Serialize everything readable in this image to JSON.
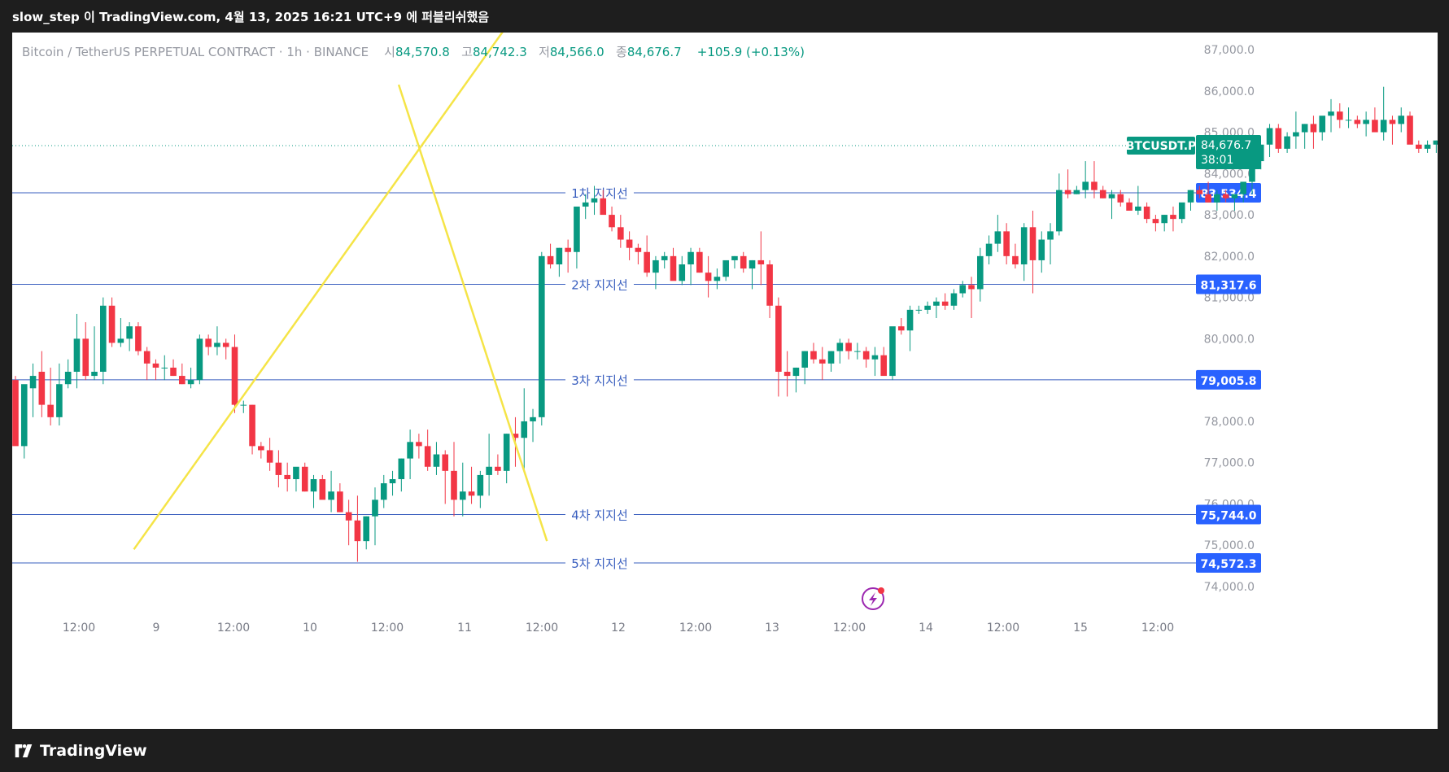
{
  "header": {
    "publisher": "slow_step 이 TradingView.com, 4월 13, 2025 16:21 UTC+9 에 퍼블리쉬했음"
  },
  "legend": {
    "symbol": "Bitcoin / TetherUS PERPETUAL CONTRACT · 1h · BINANCE",
    "open_label": "시",
    "open": "84,570.8",
    "high_label": "고",
    "high": "84,742.3",
    "low_label": "저",
    "low": "84,566.0",
    "close_label": "종",
    "close": "84,676.7",
    "change": "+105.9 (+0.13%)"
  },
  "footer": {
    "brand": "TradingView"
  },
  "colors": {
    "up": "#089981",
    "down": "#f23645",
    "line": "#3a5fbf",
    "trend": "#f5e447",
    "badge": "#2962ff"
  },
  "chart_data": {
    "type": "candlestick",
    "symbol": "BTCUSDT.P",
    "ylim": [
      73000,
      87500
    ],
    "y_ticks": [
      "74,000.0",
      "75,000.0",
      "76,000.0",
      "77,000.0",
      "78,000.0",
      "79,000.0",
      "80,000.0",
      "81,000.0",
      "82,000.0",
      "83,000.0",
      "84,000.0",
      "85,000.0",
      "86,000.0",
      "87,000.0"
    ],
    "x_ticks": [
      "12:00",
      "9",
      "12:00",
      "10",
      "12:00",
      "11",
      "12:00",
      "12",
      "12:00",
      "13",
      "12:00",
      "14",
      "12:00",
      "15",
      "12:00"
    ],
    "last_price": {
      "value": 84676.7,
      "label": "84,676.7",
      "countdown": "38:01",
      "tag": "BTCUSDT.P"
    },
    "support_lines": [
      {
        "label": "1차 지지선",
        "value": 83534.4,
        "value_label": "83,534.4"
      },
      {
        "label": "2차 지지선",
        "value": 81317.6,
        "value_label": "81,317.6"
      },
      {
        "label": "3차 지지선",
        "value": 79005.8,
        "value_label": "79,005.8"
      },
      {
        "label": "4차 지지선",
        "value": 75744.0,
        "value_label": "75,744.0"
      },
      {
        "label": "5차 지지선",
        "value": 74572.3,
        "value_label": "74,572.3"
      }
    ],
    "trendlines": [
      {
        "from": [
          13.5,
          74900
        ],
        "to": [
          57.8,
          88100
        ]
      },
      {
        "from": [
          43.7,
          86150
        ],
        "to": [
          60.6,
          75100
        ]
      }
    ],
    "candles": [
      [
        79000,
        78800,
        79100,
        77400
      ],
      [
        77400,
        77100,
        78800,
        78900
      ],
      [
        78800,
        78100,
        79400,
        79100
      ],
      [
        79200,
        78100,
        79700,
        78400
      ],
      [
        78400,
        77900,
        79300,
        78100
      ],
      [
        78100,
        77900,
        79400,
        78900
      ],
      [
        78900,
        78800,
        79500,
        79200
      ],
      [
        79200,
        78800,
        80600,
        80000
      ],
      [
        80000,
        79000,
        80400,
        79100
      ],
      [
        79100,
        79000,
        80300,
        79200
      ],
      [
        79200,
        78900,
        81000,
        80800
      ],
      [
        80800,
        79800,
        81000,
        79900
      ],
      [
        79900,
        79800,
        80500,
        80000
      ],
      [
        80000,
        79700,
        80400,
        80300
      ],
      [
        80300,
        79600,
        80400,
        79700
      ],
      [
        79700,
        79000,
        79800,
        79400
      ],
      [
        79400,
        79000,
        79500,
        79300
      ],
      [
        79300,
        79000,
        79600,
        79300
      ],
      [
        79300,
        79100,
        79500,
        79100
      ],
      [
        79100,
        78900,
        79400,
        78900
      ],
      [
        78900,
        78800,
        79300,
        79000
      ],
      [
        79000,
        78900,
        80100,
        80000
      ],
      [
        80000,
        79600,
        80100,
        79800
      ],
      [
        79800,
        79600,
        80300,
        79900
      ],
      [
        79900,
        79500,
        80000,
        79800
      ],
      [
        79800,
        78200,
        80100,
        78400
      ],
      [
        78400,
        78200,
        78500,
        78400
      ],
      [
        78400,
        77200,
        78400,
        77400
      ],
      [
        77400,
        77100,
        77500,
        77300
      ],
      [
        77300,
        76800,
        77600,
        77000
      ],
      [
        77000,
        76400,
        77300,
        76700
      ],
      [
        76700,
        76300,
        77000,
        76600
      ],
      [
        76600,
        76300,
        76800,
        76900
      ],
      [
        76900,
        76300,
        77000,
        76300
      ],
      [
        76300,
        75900,
        76700,
        76600
      ],
      [
        76600,
        76200,
        76700,
        76100
      ],
      [
        76100,
        75800,
        76800,
        76300
      ],
      [
        76300,
        75800,
        76500,
        75800
      ],
      [
        75800,
        75000,
        76100,
        75600
      ],
      [
        75600,
        74600,
        76200,
        75100
      ],
      [
        75100,
        74900,
        75700,
        75700
      ],
      [
        75700,
        75000,
        76400,
        76100
      ],
      [
        76100,
        75900,
        76700,
        76500
      ],
      [
        76500,
        76200,
        76800,
        76600
      ],
      [
        76600,
        76300,
        77100,
        77100
      ],
      [
        77100,
        76600,
        77800,
        77500
      ],
      [
        77500,
        77100,
        77700,
        77400
      ],
      [
        77400,
        76800,
        77800,
        76900
      ],
      [
        76900,
        76700,
        77500,
        77200
      ],
      [
        77200,
        76000,
        77300,
        76800
      ],
      [
        76800,
        75700,
        77500,
        76100
      ],
      [
        76100,
        75700,
        77000,
        76300
      ],
      [
        76300,
        76000,
        76900,
        76200
      ],
      [
        76200,
        75900,
        76800,
        76700
      ],
      [
        76700,
        76200,
        77700,
        76900
      ],
      [
        76900,
        76700,
        77200,
        76800
      ],
      [
        76800,
        76500,
        77700,
        77700
      ],
      [
        77700,
        76900,
        78100,
        77600
      ],
      [
        77600,
        76800,
        78800,
        78000
      ],
      [
        78000,
        77500,
        78300,
        78100
      ],
      [
        78100,
        77900,
        82100,
        82000
      ],
      [
        82000,
        81700,
        82300,
        81800
      ],
      [
        81800,
        81500,
        82200,
        82200
      ],
      [
        82200,
        81600,
        82400,
        82100
      ],
      [
        82100,
        81700,
        83100,
        83200
      ],
      [
        83200,
        82900,
        83500,
        83300
      ],
      [
        83300,
        83000,
        83700,
        83400
      ],
      [
        83400,
        83100,
        83600,
        83000
      ],
      [
        83000,
        82600,
        83200,
        82700
      ],
      [
        82700,
        82200,
        83000,
        82400
      ],
      [
        82400,
        81900,
        82600,
        82200
      ],
      [
        82200,
        81800,
        82300,
        82100
      ],
      [
        82100,
        81500,
        82500,
        81600
      ],
      [
        81600,
        81200,
        82000,
        81900
      ],
      [
        81900,
        81700,
        82100,
        82000
      ],
      [
        82000,
        81500,
        82200,
        81400
      ],
      [
        81400,
        81300,
        82000,
        81800
      ],
      [
        81800,
        81300,
        82200,
        82100
      ],
      [
        82100,
        81600,
        82200,
        81600
      ],
      [
        81600,
        81000,
        82000,
        81400
      ],
      [
        81400,
        81200,
        81700,
        81500
      ],
      [
        81500,
        81400,
        81600,
        81900
      ],
      [
        81900,
        81700,
        82000,
        82000
      ],
      [
        82000,
        81600,
        82100,
        81700
      ],
      [
        81700,
        81200,
        81900,
        81900
      ],
      [
        81900,
        81300,
        82600,
        81800
      ],
      [
        81800,
        80500,
        81900,
        80800
      ],
      [
        80800,
        78600,
        81000,
        79200
      ],
      [
        79200,
        78600,
        79700,
        79100
      ],
      [
        79100,
        78700,
        79300,
        79300
      ],
      [
        79300,
        78900,
        79700,
        79700
      ],
      [
        79700,
        79400,
        79900,
        79500
      ],
      [
        79500,
        79000,
        79800,
        79400
      ],
      [
        79400,
        79200,
        79700,
        79700
      ],
      [
        79700,
        79400,
        80000,
        79900
      ],
      [
        79900,
        79500,
        80000,
        79700
      ],
      [
        79700,
        79500,
        79900,
        79700
      ],
      [
        79700,
        79300,
        79800,
        79500
      ],
      [
        79500,
        79100,
        79800,
        79600
      ],
      [
        79600,
        79300,
        79800,
        79100
      ],
      [
        79100,
        79000,
        79400,
        80300
      ],
      [
        80300,
        80100,
        80500,
        80200
      ],
      [
        80200,
        79700,
        80800,
        80700
      ],
      [
        80700,
        80600,
        80800,
        80700
      ],
      [
        80700,
        80600,
        80900,
        80800
      ],
      [
        80800,
        80500,
        81000,
        80900
      ],
      [
        80900,
        80700,
        81100,
        80800
      ],
      [
        80800,
        80700,
        81200,
        81100
      ],
      [
        81100,
        81000,
        81400,
        81300
      ],
      [
        81300,
        80500,
        81500,
        81200
      ],
      [
        81200,
        80900,
        82200,
        82000
      ],
      [
        82000,
        81800,
        82500,
        82300
      ],
      [
        82300,
        82100,
        83000,
        82600
      ],
      [
        82600,
        81800,
        82800,
        82000
      ],
      [
        82000,
        81700,
        82300,
        81800
      ],
      [
        81800,
        81400,
        82800,
        82700
      ],
      [
        82700,
        81100,
        83100,
        81900
      ],
      [
        81900,
        81600,
        82600,
        82400
      ],
      [
        82400,
        81800,
        82800,
        82600
      ],
      [
        82600,
        82500,
        84000,
        83600
      ],
      [
        83600,
        83400,
        84100,
        83500
      ],
      [
        83500,
        83500,
        83700,
        83600
      ],
      [
        83600,
        83400,
        84300,
        83800
      ],
      [
        83800,
        83400,
        84300,
        83600
      ],
      [
        83600,
        83400,
        83700,
        83400
      ],
      [
        83400,
        82900,
        83600,
        83500
      ],
      [
        83500,
        83200,
        83600,
        83300
      ],
      [
        83300,
        83100,
        83400,
        83100
      ],
      [
        83100,
        83000,
        83700,
        83200
      ],
      [
        83200,
        82800,
        83300,
        82900
      ],
      [
        82900,
        82600,
        83000,
        82800
      ],
      [
        82800,
        82600,
        83000,
        83000
      ],
      [
        83000,
        82600,
        83200,
        82900
      ],
      [
        82900,
        82800,
        83200,
        83300
      ],
      [
        83300,
        83100,
        83600,
        83600
      ],
      [
        83600,
        83400,
        83700,
        83500
      ],
      [
        83500,
        83300,
        83800,
        83300
      ],
      [
        83300,
        83100,
        83600,
        83500
      ],
      [
        83500,
        83300,
        83600,
        83400
      ],
      [
        83400,
        83100,
        83500,
        83500
      ],
      [
        83500,
        83300,
        83800,
        83800
      ],
      [
        83800,
        83500,
        84100,
        84300
      ],
      [
        84300,
        84100,
        84700,
        84700
      ],
      [
        84700,
        84400,
        85200,
        85100
      ],
      [
        85100,
        84500,
        85200,
        84600
      ],
      [
        84600,
        84500,
        85000,
        84900
      ],
      [
        84900,
        84600,
        85500,
        85000
      ],
      [
        85000,
        84600,
        85200,
        85200
      ],
      [
        85200,
        84600,
        85400,
        85000
      ],
      [
        85000,
        84800,
        85200,
        85400
      ],
      [
        85400,
        85000,
        85800,
        85500
      ],
      [
        85500,
        85100,
        85700,
        85300
      ],
      [
        85300,
        85100,
        85600,
        85300
      ],
      [
        85300,
        85100,
        85400,
        85200
      ],
      [
        85200,
        84900,
        85500,
        85300
      ],
      [
        85300,
        85100,
        85600,
        85000
      ],
      [
        85000,
        84800,
        86100,
        85300
      ],
      [
        85300,
        84700,
        85400,
        85200
      ],
      [
        85200,
        85000,
        85600,
        85400
      ],
      [
        85400,
        84900,
        85500,
        84700
      ],
      [
        84700,
        84500,
        84800,
        84600
      ],
      [
        84600,
        84500,
        84800,
        84700
      ],
      [
        84700,
        84500,
        84800,
        84800
      ]
    ]
  }
}
